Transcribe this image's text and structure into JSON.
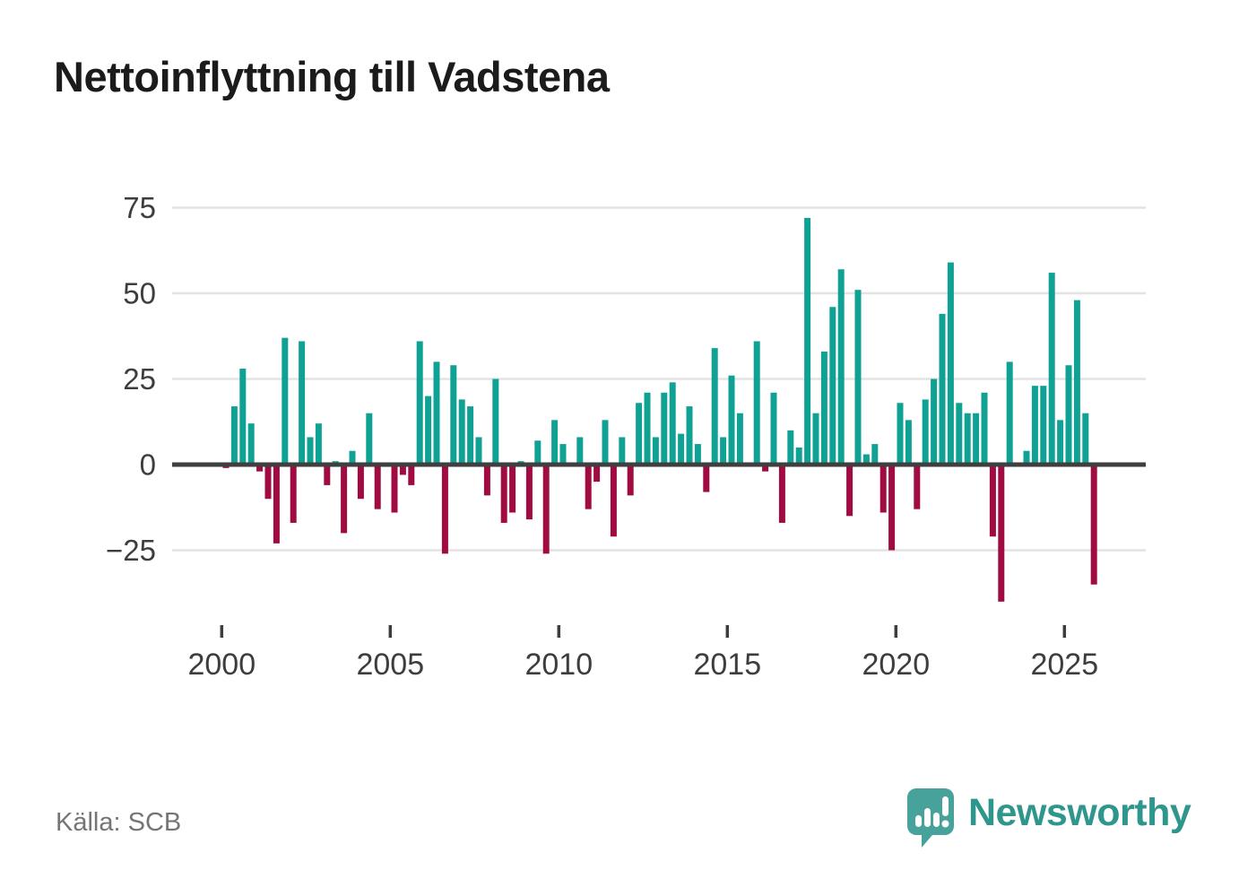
{
  "title": "Nettoinflyttning till Vadstena",
  "source": "Källa: SCB",
  "branding": {
    "name": "Newsworthy",
    "icon": "bar-chart-speech-bubble-icon",
    "icon_color": "#47A29B",
    "wordmark_color": "#2F968E"
  },
  "colors": {
    "positive_bar": "#10A195",
    "negative_bar": "#A00B42",
    "zero_axis": "#3F3F3F",
    "gridline": "#E3E3E3",
    "tick_label": "#3D3D3D",
    "source_text": "#757575",
    "title_text": "#1B1B1B",
    "background": "#FFFFFF"
  },
  "chart_data": {
    "type": "bar",
    "title": "Nettoinflyttning till Vadstena",
    "description": "Net migration per quarter, one bar per quarter",
    "start_year": 2000,
    "frequency": "quarterly",
    "values": [
      -1,
      17,
      28,
      12,
      -2,
      -10,
      -23,
      37,
      -17,
      36,
      8,
      12,
      -6,
      1,
      -20,
      4,
      -10,
      15,
      -13,
      0,
      -14,
      -3,
      -6,
      36,
      20,
      30,
      -26,
      29,
      19,
      17,
      8,
      -9,
      25,
      -17,
      -14,
      1,
      -16,
      7,
      -26,
      13,
      6,
      0,
      8,
      -13,
      -5,
      13,
      -21,
      8,
      -9,
      18,
      21,
      8,
      21,
      24,
      9,
      17,
      6,
      -8,
      34,
      8,
      26,
      15,
      0,
      36,
      -2,
      21,
      -17,
      10,
      5,
      72,
      15,
      33,
      46,
      57,
      -15,
      51,
      3,
      6,
      -14,
      -25,
      18,
      13,
      -13,
      19,
      25,
      44,
      59,
      18,
      15,
      15,
      21,
      -21,
      -40,
      30,
      0,
      4,
      23,
      23,
      56,
      13,
      29,
      48,
      15,
      -35
    ],
    "x_tick_years": [
      2000,
      2005,
      2010,
      2015,
      2020,
      2025
    ],
    "x_tick_labels": [
      "2000",
      "2005",
      "2010",
      "2015",
      "2020",
      "2025"
    ],
    "y_ticks": [
      75,
      50,
      25,
      0,
      -25
    ],
    "y_tick_labels": [
      "75",
      "50",
      "25",
      "0",
      "−25"
    ],
    "ylim": [
      -42,
      80
    ],
    "grid": "horizontal",
    "legend": "none",
    "positive_color": "#10A195",
    "negative_color": "#A00B42"
  }
}
